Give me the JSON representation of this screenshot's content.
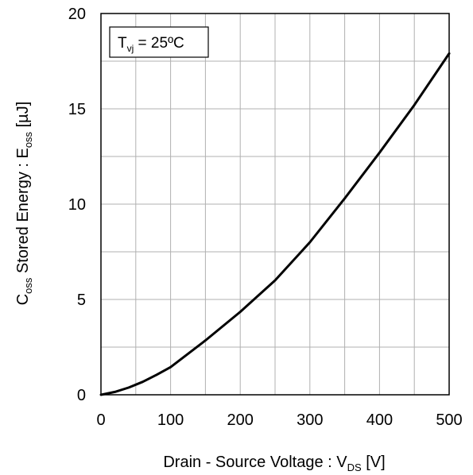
{
  "chart_data": {
    "type": "line",
    "xlabel": {
      "main": "Drain - Source Voltage : V",
      "sub": "DS",
      "suffix": " [V]"
    },
    "ylabel": {
      "pre": "C",
      "pre_sub": "oss",
      "mid": " Stored Energy : E",
      "mid_sub": "oss",
      "suffix": " [µJ]"
    },
    "xlim": [
      0,
      500
    ],
    "ylim": [
      0,
      20
    ],
    "xticks": [
      0,
      100,
      200,
      300,
      400,
      500
    ],
    "yticks": [
      0,
      5,
      10,
      15,
      20
    ],
    "grid": true,
    "annotation": {
      "main": "T",
      "sub": "vj",
      "suffix": " = 25ºC"
    },
    "series": [
      {
        "color": "#000000",
        "x": [
          0,
          20,
          40,
          60,
          80,
          100,
          150,
          200,
          250,
          300,
          350,
          400,
          450,
          500
        ],
        "y": [
          0,
          0.15,
          0.38,
          0.68,
          1.05,
          1.45,
          2.85,
          4.35,
          6.0,
          8.0,
          10.3,
          12.7,
          15.2,
          17.9
        ]
      }
    ]
  }
}
